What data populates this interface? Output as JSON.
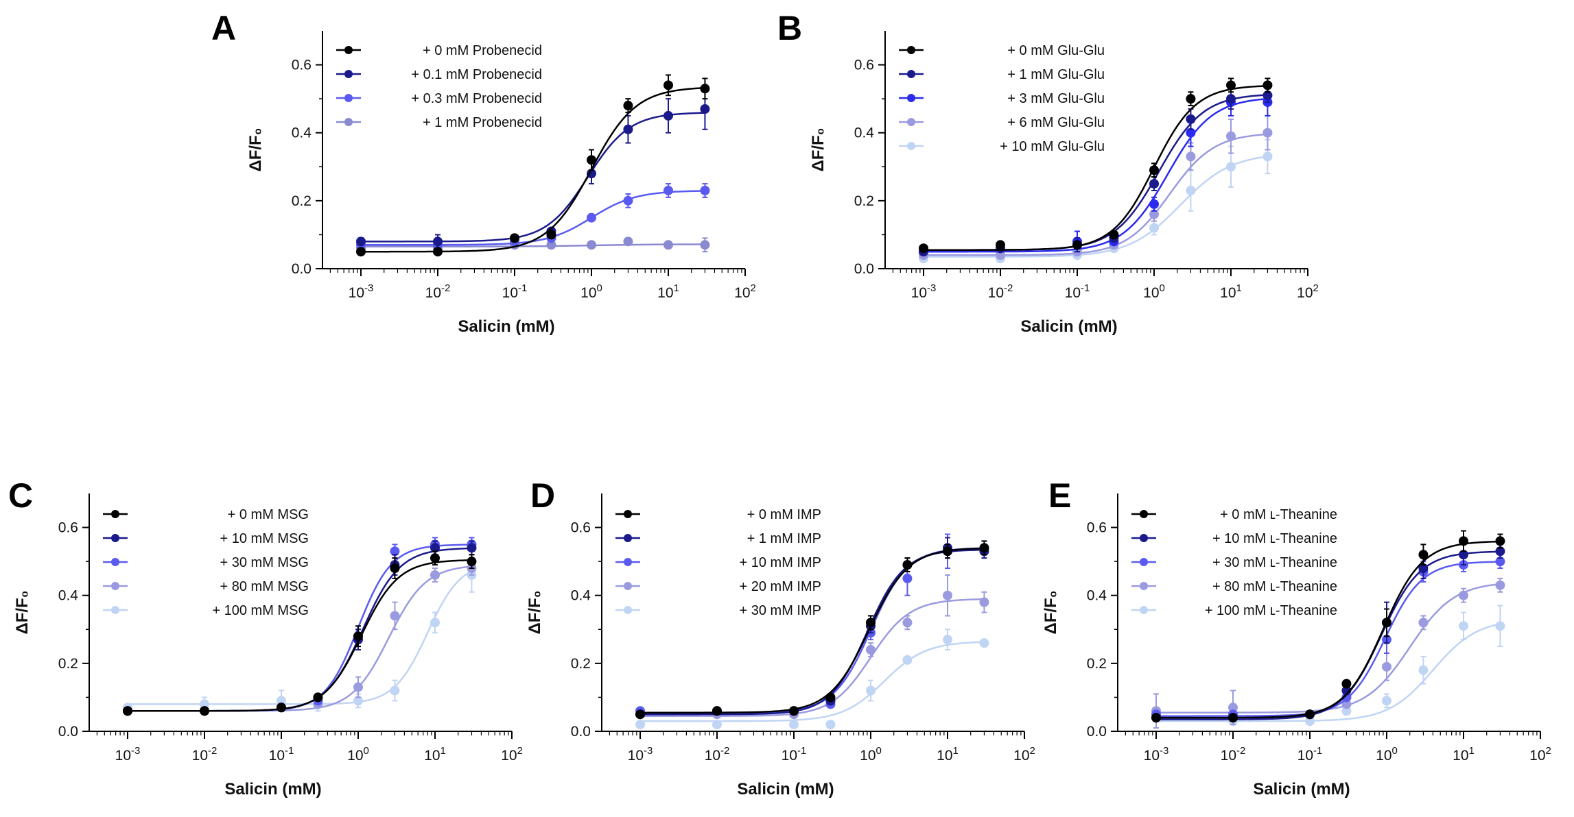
{
  "chart_data": [
    {
      "panel": "A",
      "type": "line",
      "xscale": "log",
      "xlabel": "Salicin (mM)",
      "ylabel": "ΔF/F₀",
      "ylim": [
        0,
        0.7
      ],
      "yticks": [
        "0.0",
        "0.2",
        "0.4",
        "0.6"
      ],
      "xticks": [
        "10-3",
        "10-2",
        "10-1",
        "100",
        "101",
        "102"
      ],
      "xlim_log10": [
        -3.5,
        2
      ],
      "x": [
        0.001,
        0.01,
        0.1,
        0.3,
        1,
        3,
        10,
        30
      ],
      "series": [
        {
          "name": "+ 0 mM Probenecid",
          "color": "#000000",
          "values": [
            0.05,
            0.05,
            0.09,
            0.1,
            0.32,
            0.48,
            0.54,
            0.53
          ],
          "errors": [
            0.005,
            0.005,
            0.01,
            0.01,
            0.03,
            0.02,
            0.03,
            0.03
          ],
          "fit": {
            "bottom": 0.05,
            "top": 0.535,
            "ec50": 1.0,
            "hill": 1.5
          }
        },
        {
          "name": "+ 0.1 mM Probenecid",
          "color": "#1a1a8c",
          "values": [
            0.08,
            0.08,
            0.09,
            0.11,
            0.28,
            0.41,
            0.45,
            0.47
          ],
          "errors": [
            0.01,
            0.02,
            0.01,
            0.01,
            0.03,
            0.04,
            0.05,
            0.06
          ],
          "fit": {
            "bottom": 0.08,
            "top": 0.46,
            "ec50": 0.9,
            "hill": 1.6
          }
        },
        {
          "name": "+ 0.3 mM Probenecid",
          "color": "#5a5af0",
          "values": [
            0.07,
            0.07,
            0.08,
            0.09,
            0.15,
            0.2,
            0.23,
            0.23
          ],
          "errors": [
            0.005,
            0.005,
            0.005,
            0.01,
            0.01,
            0.02,
            0.02,
            0.02
          ],
          "fit": {
            "bottom": 0.07,
            "top": 0.23,
            "ec50": 1.0,
            "hill": 1.5
          }
        },
        {
          "name": "+ 1 mM Probenecid",
          "color": "#8a8ad0",
          "values": [
            0.06,
            0.06,
            0.07,
            0.07,
            0.07,
            0.08,
            0.07,
            0.07
          ],
          "errors": [
            0.005,
            0.005,
            0.005,
            0.005,
            0.005,
            0.005,
            0.01,
            0.02
          ],
          "fit": {
            "bottom": 0.065,
            "top": 0.072,
            "ec50": 1.0,
            "hill": 1.0
          }
        }
      ]
    },
    {
      "panel": "B",
      "type": "line",
      "xscale": "log",
      "xlabel": "Salicin (mM)",
      "ylabel": "ΔF/F₀",
      "ylim": [
        0,
        0.7
      ],
      "yticks": [
        "0.0",
        "0.2",
        "0.4",
        "0.6"
      ],
      "xticks": [
        "10-3",
        "10-2",
        "10-1",
        "100",
        "101",
        "102"
      ],
      "xlim_log10": [
        -3.5,
        2
      ],
      "x": [
        0.001,
        0.01,
        0.1,
        0.3,
        1,
        3,
        10,
        30
      ],
      "series": [
        {
          "name": "+ 0 mM Glu-Glu",
          "color": "#000000",
          "values": [
            0.06,
            0.07,
            0.07,
            0.1,
            0.29,
            0.5,
            0.54,
            0.54
          ],
          "errors": [
            0.005,
            0.005,
            0.01,
            0.01,
            0.02,
            0.02,
            0.02,
            0.02
          ],
          "fit": {
            "bottom": 0.055,
            "top": 0.54,
            "ec50": 1.0,
            "hill": 1.6
          }
        },
        {
          "name": "+ 1 mM Glu-Glu",
          "color": "#1a1a8c",
          "values": [
            0.05,
            0.06,
            0.07,
            0.09,
            0.25,
            0.44,
            0.5,
            0.51
          ],
          "errors": [
            0.005,
            0.005,
            0.02,
            0.01,
            0.02,
            0.03,
            0.03,
            0.02
          ],
          "fit": {
            "bottom": 0.055,
            "top": 0.515,
            "ec50": 1.15,
            "hill": 1.5
          }
        },
        {
          "name": "+ 3 mM Glu-Glu",
          "color": "#2a2af0",
          "values": [
            0.05,
            0.06,
            0.08,
            0.08,
            0.19,
            0.4,
            0.49,
            0.49
          ],
          "errors": [
            0.005,
            0.005,
            0.03,
            0.01,
            0.02,
            0.04,
            0.04,
            0.04
          ],
          "fit": {
            "bottom": 0.05,
            "top": 0.505,
            "ec50": 1.5,
            "hill": 1.5
          }
        },
        {
          "name": "+ 6 mM Glu-Glu",
          "color": "#9a9ae0",
          "values": [
            0.04,
            0.04,
            0.05,
            0.07,
            0.16,
            0.33,
            0.39,
            0.4
          ],
          "errors": [
            0.005,
            0.005,
            0.01,
            0.01,
            0.02,
            0.04,
            0.05,
            0.05
          ],
          "fit": {
            "bottom": 0.04,
            "top": 0.4,
            "ec50": 1.6,
            "hill": 1.5
          }
        },
        {
          "name": "+ 10 mM Glu-Glu",
          "color": "#c0d4f4",
          "values": [
            0.03,
            0.03,
            0.04,
            0.06,
            0.12,
            0.23,
            0.3,
            0.33
          ],
          "errors": [
            0.005,
            0.005,
            0.01,
            0.01,
            0.02,
            0.06,
            0.06,
            0.05
          ],
          "fit": {
            "bottom": 0.035,
            "top": 0.34,
            "ec50": 2.2,
            "hill": 1.3
          }
        }
      ]
    },
    {
      "panel": "C",
      "type": "line",
      "xscale": "log",
      "xlabel": "Salicin (mM)",
      "ylabel": "ΔF/F₀",
      "ylim": [
        0,
        0.7
      ],
      "yticks": [
        "0.0",
        "0.2",
        "0.4",
        "0.6"
      ],
      "xticks": [
        "10-3",
        "10-2",
        "10-1",
        "100",
        "101",
        "102"
      ],
      "xlim_log10": [
        -3.5,
        2
      ],
      "x": [
        0.001,
        0.01,
        0.1,
        0.3,
        1,
        3,
        10,
        30
      ],
      "series": [
        {
          "name": "+ 0 mM MSG",
          "color": "#000000",
          "values": [
            0.06,
            0.06,
            0.07,
            0.1,
            0.28,
            0.48,
            0.51,
            0.5
          ],
          "errors": [
            0.005,
            0.005,
            0.01,
            0.01,
            0.03,
            0.03,
            0.02,
            0.02
          ],
          "fit": {
            "bottom": 0.06,
            "top": 0.505,
            "ec50": 1.1,
            "hill": 1.8
          }
        },
        {
          "name": "+ 10 mM MSG",
          "color": "#1a1a8c",
          "values": [
            0.06,
            0.06,
            0.07,
            0.1,
            0.27,
            0.49,
            0.54,
            0.54
          ],
          "errors": [
            0.005,
            0.005,
            0.01,
            0.01,
            0.03,
            0.03,
            0.02,
            0.02
          ],
          "fit": {
            "bottom": 0.06,
            "top": 0.54,
            "ec50": 1.15,
            "hill": 1.8
          }
        },
        {
          "name": "+ 30 mM MSG",
          "color": "#5a5af0",
          "values": [
            0.06,
            0.06,
            0.07,
            0.09,
            0.28,
            0.53,
            0.55,
            0.55
          ],
          "errors": [
            0.005,
            0.005,
            0.01,
            0.01,
            0.03,
            0.02,
            0.02,
            0.02
          ],
          "fit": {
            "bottom": 0.06,
            "top": 0.55,
            "ec50": 1.0,
            "hill": 2.0
          }
        },
        {
          "name": "+ 80 mM MSG",
          "color": "#9a9ae0",
          "values": [
            0.06,
            0.06,
            0.07,
            0.08,
            0.13,
            0.34,
            0.46,
            0.48
          ],
          "errors": [
            0.005,
            0.005,
            0.01,
            0.01,
            0.03,
            0.04,
            0.02,
            0.02
          ],
          "fit": {
            "bottom": 0.06,
            "top": 0.49,
            "ec50": 2.5,
            "hill": 1.8
          }
        },
        {
          "name": "+ 100 mM MSG",
          "color": "#c0d4f4",
          "values": [
            0.07,
            0.08,
            0.09,
            0.08,
            0.09,
            0.12,
            0.32,
            0.46
          ],
          "errors": [
            0.01,
            0.02,
            0.03,
            0.02,
            0.02,
            0.03,
            0.03,
            0.05
          ],
          "fit": {
            "bottom": 0.08,
            "top": 0.5,
            "ec50": 8.0,
            "hill": 2.0
          }
        }
      ]
    },
    {
      "panel": "D",
      "type": "line",
      "xscale": "log",
      "xlabel": "Salicin (mM)",
      "ylabel": "ΔF/F₀",
      "ylim": [
        0,
        0.7
      ],
      "yticks": [
        "0.0",
        "0.2",
        "0.4",
        "0.6"
      ],
      "xticks": [
        "10-3",
        "10-2",
        "10-1",
        "100",
        "101",
        "102"
      ],
      "xlim_log10": [
        -3.5,
        2
      ],
      "x": [
        0.001,
        0.01,
        0.1,
        0.3,
        1,
        3,
        10,
        30
      ],
      "series": [
        {
          "name": "+ 0 mM IMP",
          "color": "#000000",
          "values": [
            0.05,
            0.06,
            0.06,
            0.1,
            0.32,
            0.49,
            0.53,
            0.54
          ],
          "errors": [
            0.005,
            0.005,
            0.01,
            0.01,
            0.02,
            0.02,
            0.02,
            0.02
          ],
          "fit": {
            "bottom": 0.055,
            "top": 0.54,
            "ec50": 0.95,
            "hill": 1.7
          }
        },
        {
          "name": "+ 1 mM IMP",
          "color": "#1a1a8c",
          "values": [
            0.05,
            0.06,
            0.06,
            0.09,
            0.31,
            0.49,
            0.54,
            0.53
          ],
          "errors": [
            0.005,
            0.005,
            0.01,
            0.01,
            0.02,
            0.02,
            0.03,
            0.02
          ],
          "fit": {
            "bottom": 0.05,
            "top": 0.535,
            "ec50": 0.9,
            "hill": 1.8
          }
        },
        {
          "name": "+ 10 mM IMP",
          "color": "#5a5af0",
          "values": [
            0.06,
            0.06,
            0.06,
            0.08,
            0.29,
            0.45,
            0.53,
            0.54
          ],
          "errors": [
            0.005,
            0.005,
            0.01,
            0.01,
            0.02,
            0.05,
            0.05,
            0.02
          ],
          "fit": {
            "bottom": 0.055,
            "top": 0.54,
            "ec50": 1.0,
            "hill": 1.8
          }
        },
        {
          "name": "+ 20 mM IMP",
          "color": "#9a9ae0",
          "values": [
            0.05,
            0.05,
            0.05,
            0.09,
            0.24,
            0.32,
            0.4,
            0.38
          ],
          "errors": [
            0.005,
            0.005,
            0.01,
            0.01,
            0.02,
            0.02,
            0.06,
            0.03
          ],
          "fit": {
            "bottom": 0.045,
            "top": 0.39,
            "ec50": 1.0,
            "hill": 1.7
          }
        },
        {
          "name": "+ 30 mM IMP",
          "color": "#c0d4f4",
          "values": [
            0.02,
            0.02,
            0.02,
            0.02,
            0.12,
            0.21,
            0.27,
            0.26
          ],
          "errors": [
            0.005,
            0.005,
            0.005,
            0.005,
            0.03,
            0.01,
            0.03,
            0.01
          ],
          "fit": {
            "bottom": 0.03,
            "top": 0.265,
            "ec50": 1.5,
            "hill": 1.6
          }
        }
      ]
    },
    {
      "panel": "E",
      "type": "line",
      "xscale": "log",
      "xlabel": "Salicin (mM)",
      "ylabel": "ΔF/F₀",
      "ylim": [
        0,
        0.7
      ],
      "yticks": [
        "0.0",
        "0.2",
        "0.4",
        "0.6"
      ],
      "xticks": [
        "10-3",
        "10-2",
        "10-1",
        "100",
        "101",
        "102"
      ],
      "xlim_log10": [
        -3.5,
        2
      ],
      "x": [
        0.001,
        0.01,
        0.1,
        0.3,
        1,
        3,
        10,
        30
      ],
      "series": [
        {
          "name": "+ 0 mM ʟ-Theanine",
          "color": "#000000",
          "values": [
            0.04,
            0.04,
            0.05,
            0.14,
            0.32,
            0.52,
            0.56,
            0.56
          ],
          "errors": [
            0.005,
            0.005,
            0.01,
            0.01,
            0.04,
            0.03,
            0.03,
            0.02
          ],
          "fit": {
            "bottom": 0.04,
            "top": 0.56,
            "ec50": 0.9,
            "hill": 1.7
          }
        },
        {
          "name": "+ 10 mM ʟ-Theanine",
          "color": "#1a1a8c",
          "values": [
            0.04,
            0.04,
            0.05,
            0.12,
            0.32,
            0.48,
            0.52,
            0.53
          ],
          "errors": [
            0.005,
            0.005,
            0.01,
            0.01,
            0.06,
            0.03,
            0.03,
            0.02
          ],
          "fit": {
            "bottom": 0.035,
            "top": 0.53,
            "ec50": 0.85,
            "hill": 1.7
          }
        },
        {
          "name": "+ 30 mM ʟ-Theanine",
          "color": "#5a5af0",
          "values": [
            0.05,
            0.05,
            0.05,
            0.1,
            0.27,
            0.47,
            0.49,
            0.5
          ],
          "errors": [
            0.005,
            0.005,
            0.01,
            0.01,
            0.04,
            0.03,
            0.02,
            0.02
          ],
          "fit": {
            "bottom": 0.045,
            "top": 0.5,
            "ec50": 0.95,
            "hill": 1.8
          }
        },
        {
          "name": "+ 80 mM ʟ-Theanine",
          "color": "#9a9ae0",
          "values": [
            0.06,
            0.07,
            0.05,
            0.08,
            0.19,
            0.32,
            0.4,
            0.43
          ],
          "errors": [
            0.05,
            0.05,
            0.01,
            0.01,
            0.04,
            0.02,
            0.02,
            0.02
          ],
          "fit": {
            "bottom": 0.055,
            "top": 0.44,
            "ec50": 2.0,
            "hill": 1.5
          }
        },
        {
          "name": "+ 100 mM ʟ-Theanine",
          "color": "#c0d4f4",
          "values": [
            0.04,
            0.03,
            0.03,
            0.06,
            0.09,
            0.18,
            0.31,
            0.31
          ],
          "errors": [
            0.01,
            0.01,
            0.01,
            0.01,
            0.02,
            0.04,
            0.04,
            0.06
          ],
          "fit": {
            "bottom": 0.03,
            "top": 0.33,
            "ec50": 4.0,
            "hill": 1.5
          }
        }
      ]
    }
  ]
}
